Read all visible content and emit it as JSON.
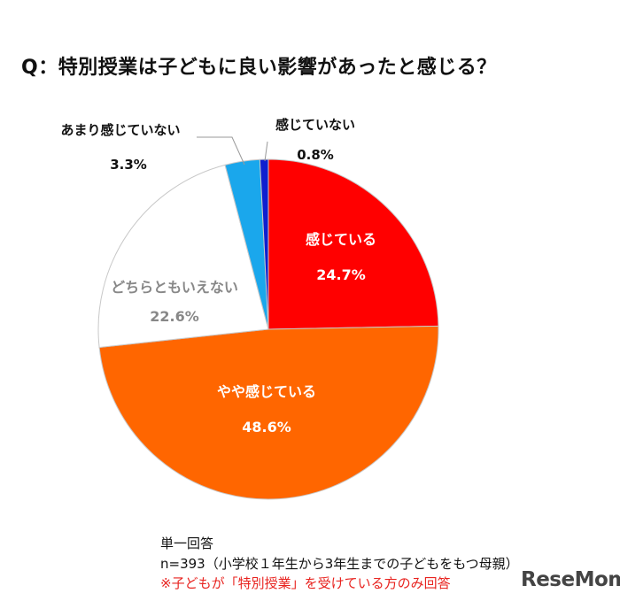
{
  "title": "Q：特別授業は子どもに良い影響があったと感じる？",
  "chart_data": {
    "type": "pie",
    "slices": [
      {
        "label": "感じている",
        "value": 24.7,
        "value_label": "24.7%",
        "color": "#ff0000"
      },
      {
        "label": "やや感じている",
        "value": 48.6,
        "value_label": "48.6%",
        "color": "#ff6600"
      },
      {
        "label": "どちらともいえない",
        "value": 22.6,
        "value_label": "22.6%",
        "color": "#ffffff"
      },
      {
        "label": "あまり感じていない",
        "value": 3.3,
        "value_label": "3.3%",
        "color": "#1aa7ec"
      },
      {
        "label": "感じていない",
        "value": 0.8,
        "value_label": "0.8%",
        "color": "#0f1fcf"
      }
    ]
  },
  "notes": {
    "line1": "単一回答",
    "line2": "n=393（小学校１年生から3年生までの子どもをもつ母親）",
    "line3": "※子どもが「特別授業」を受けている方のみ回答"
  },
  "logo": "ReseMom"
}
